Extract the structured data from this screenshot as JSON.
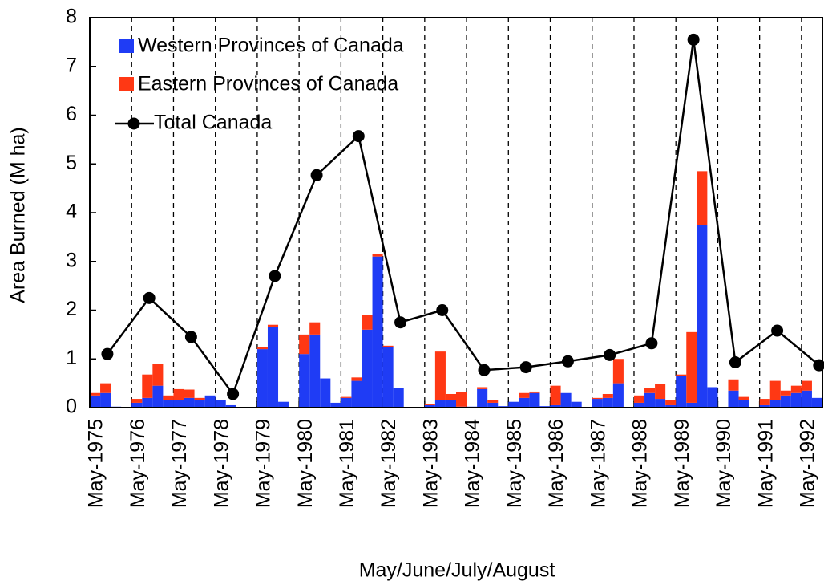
{
  "chart_data": {
    "type": "bar",
    "stacked": true,
    "xlabel": "May/June/July/August",
    "ylabel": "Area Burned (M ha)",
    "categories": [
      "May-1975",
      null,
      null,
      null,
      "May-1976",
      null,
      null,
      null,
      "May-1977",
      null,
      null,
      null,
      "May-1978",
      null,
      null,
      null,
      "May-1979",
      null,
      null,
      null,
      "May-1980",
      null,
      null,
      null,
      "May-1981",
      null,
      null,
      null,
      "May-1982",
      null,
      null,
      null,
      "May-1983",
      null,
      null,
      null,
      "May-1984",
      null,
      null,
      null,
      "May-1985",
      null,
      null,
      null,
      "May-1986",
      null,
      null,
      null,
      "May-1987",
      null,
      null,
      null,
      "May-1988",
      null,
      null,
      null,
      "May-1989",
      null,
      null,
      null,
      "May-1990",
      null,
      null,
      null,
      "May-1991",
      null,
      null,
      null,
      "May-1992",
      null
    ],
    "series": [
      {
        "name": "Western Provinces of Canada",
        "color": "#1f3cf5",
        "values": [
          0.25,
          0.3,
          0.02,
          0,
          0.1,
          0.2,
          0.45,
          0.15,
          0.15,
          0.2,
          0.15,
          0.25,
          0.15,
          0.05,
          0,
          0,
          1.2,
          1.65,
          0.12,
          0,
          1.1,
          1.5,
          0.6,
          0.1,
          0.2,
          0.55,
          1.6,
          3.1,
          1.25,
          0.4,
          0,
          0,
          0.05,
          0.15,
          0.15,
          0.02,
          0.02,
          0.38,
          0.1,
          0.03,
          0.12,
          0.2,
          0.3,
          0.03,
          0.05,
          0.3,
          0.12,
          0,
          0.18,
          0.2,
          0.5,
          0,
          0.1,
          0.3,
          0.18,
          0.05,
          0.65,
          0.1,
          3.75,
          0.42,
          0,
          0.35,
          0.15,
          0,
          0.05,
          0.15,
          0.25,
          0.3,
          0.35,
          0.2
        ]
      },
      {
        "name": "Eastern Provinces of Canada",
        "color": "#ff3814",
        "values": [
          0.05,
          0.2,
          0,
          0,
          0.08,
          0.48,
          0.45,
          0.1,
          0.23,
          0.17,
          0.05,
          0,
          0,
          0,
          0,
          0,
          0.05,
          0.05,
          0,
          0,
          0.4,
          0.25,
          0,
          0,
          0.02,
          0.07,
          0.3,
          0.05,
          0.02,
          0,
          0,
          0,
          0.03,
          1.0,
          0.13,
          0.3,
          0,
          0.04,
          0.05,
          0,
          0,
          0.1,
          0.03,
          0,
          0.4,
          0,
          0,
          0,
          0.02,
          0.08,
          0.5,
          0,
          0.15,
          0.1,
          0.3,
          0.1,
          0.03,
          1.45,
          1.1,
          0,
          0,
          0.23,
          0.07,
          0,
          0.13,
          0.4,
          0.1,
          0.15,
          0.2,
          0
        ]
      }
    ],
    "line": {
      "name": "Total Canada",
      "color": "#000000",
      "values": [
        1.1,
        2.25,
        1.45,
        0.28,
        2.7,
        4.77,
        5.57,
        1.75,
        2.0,
        0.77,
        0.83,
        0.95,
        1.08,
        1.32,
        7.55,
        0.93,
        1.58,
        0.87
      ]
    },
    "ylim": [
      0,
      8
    ],
    "yticks": [
      0,
      1,
      2,
      3,
      4,
      5,
      6,
      7,
      8
    ],
    "grid": true,
    "legend": "upper left"
  }
}
